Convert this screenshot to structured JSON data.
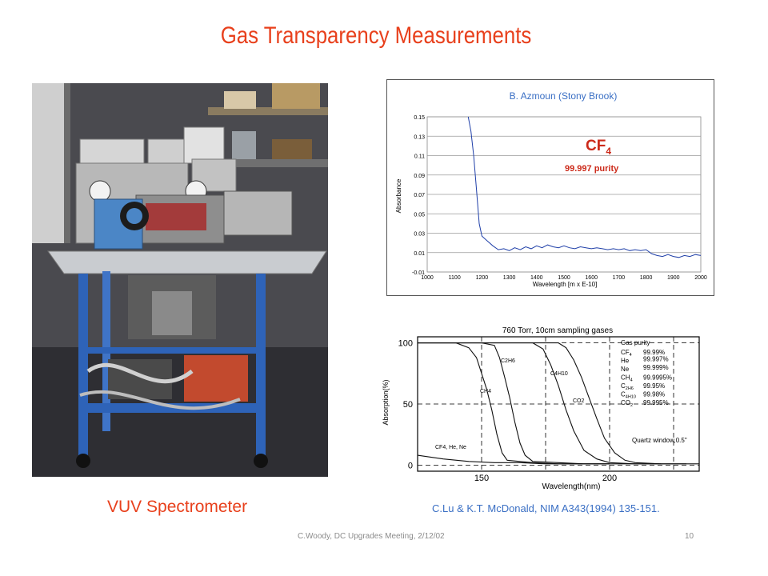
{
  "slide": {
    "title": "Gas Transparency Measurements",
    "photo_caption": "VUV Spectrometer",
    "footer": "C.Woody, DC Upgrades Meeting, 2/12/02",
    "page_number": "10"
  },
  "chart_data": [
    {
      "type": "line",
      "title": "B.  Azmoun (Stony Brook)",
      "xlabel": "Wavelength [m x E-10]",
      "ylabel": "Absorbance",
      "annotation_main": "CF",
      "annotation_sub": "4",
      "annotation_purity": "99.997 purity",
      "xlim": [
        1000,
        2000
      ],
      "ylim": [
        -0.01,
        0.15
      ],
      "x_ticks": [
        "1000",
        "1100",
        "1200",
        "1300",
        "1400",
        "1500",
        "1600",
        "1700",
        "1800",
        "1900",
        "2000"
      ],
      "y_ticks": [
        "0.15",
        "0.13",
        "0.11",
        "0.09",
        "0.07",
        "0.05",
        "0.03",
        "0.01",
        "-0.01"
      ],
      "grid": true,
      "series": [
        {
          "color": "#1f3fa8",
          "x": [
            1150,
            1160,
            1170,
            1180,
            1190,
            1200,
            1220,
            1240,
            1260,
            1280,
            1300,
            1320,
            1340,
            1360,
            1380,
            1400,
            1420,
            1440,
            1460,
            1480,
            1500,
            1520,
            1540,
            1560,
            1580,
            1600,
            1620,
            1640,
            1660,
            1680,
            1700,
            1720,
            1740,
            1760,
            1780,
            1800,
            1820,
            1840,
            1860,
            1880,
            1900,
            1920,
            1940,
            1960,
            1980,
            2000
          ],
          "y": [
            0.15,
            0.135,
            0.11,
            0.075,
            0.04,
            0.027,
            0.022,
            0.017,
            0.013,
            0.014,
            0.012,
            0.015,
            0.013,
            0.016,
            0.014,
            0.017,
            0.015,
            0.018,
            0.016,
            0.015,
            0.017,
            0.015,
            0.014,
            0.016,
            0.015,
            0.014,
            0.015,
            0.014,
            0.013,
            0.014,
            0.013,
            0.014,
            0.012,
            0.013,
            0.012,
            0.013,
            0.009,
            0.007,
            0.006,
            0.008,
            0.006,
            0.005,
            0.007,
            0.006,
            0.008,
            0.007
          ]
        }
      ]
    },
    {
      "type": "line",
      "title": "760 Torr, 10cm sampling gases",
      "xlabel": "Wavelength(nm)",
      "ylabel": "Absorption(%)",
      "xlim": [
        125,
        235
      ],
      "ylim": [
        -5,
        105
      ],
      "x_ticks": [
        "150",
        "200"
      ],
      "y_ticks": [
        "100",
        "50",
        "0"
      ],
      "grid": true,
      "legend_title": "Gas purity",
      "legend": [
        {
          "gas": "CF",
          "sub": "4",
          "purity": "99.99%"
        },
        {
          "gas": "He",
          "sub": "",
          "purity": "99.997%"
        },
        {
          "gas": "Ne",
          "sub": "",
          "purity": "99.999%"
        },
        {
          "gas": "CH",
          "sub": "4",
          "purity": "99.9995%"
        },
        {
          "gas": "C",
          "sub": "2H6",
          "purity": "99.95%"
        },
        {
          "gas": "C",
          "sub": "4H10",
          "purity": "99.98%"
        },
        {
          "gas": "CO",
          "sub": "2",
          "purity": "99.995%"
        }
      ],
      "curve_labels": [
        "C2H6",
        "CH4",
        "C4H10",
        "CO2",
        "CF4, He, Ne"
      ],
      "annotation": "Quartz window,0.5\"",
      "series": [
        {
          "name": "CH4",
          "x": [
            125,
            140,
            145,
            148,
            150,
            152,
            154,
            156,
            158,
            160,
            170,
            180,
            190,
            200
          ],
          "y": [
            100,
            100,
            96,
            88,
            75,
            62,
            45,
            25,
            10,
            4,
            2,
            1,
            1,
            1
          ]
        },
        {
          "name": "C2H6",
          "x": [
            125,
            150,
            155,
            157,
            159,
            161,
            163,
            165,
            167,
            170,
            180,
            190,
            200
          ],
          "y": [
            100,
            100,
            98,
            88,
            72,
            55,
            35,
            18,
            8,
            3,
            2,
            1,
            1
          ]
        },
        {
          "name": "C4H10",
          "x": [
            125,
            170,
            174,
            177,
            180,
            183,
            186,
            190,
            195,
            200,
            210,
            220
          ],
          "y": [
            100,
            100,
            95,
            82,
            65,
            45,
            28,
            12,
            5,
            2,
            1,
            1
          ]
        },
        {
          "name": "CO2",
          "x": [
            125,
            180,
            183,
            186,
            189,
            192,
            195,
            198,
            202,
            206,
            210,
            220,
            230
          ],
          "y": [
            100,
            100,
            96,
            86,
            72,
            55,
            38,
            22,
            10,
            4,
            2,
            1,
            1
          ]
        },
        {
          "name": "CF4, He, Ne",
          "x": [
            125,
            135,
            145,
            155,
            165,
            175,
            185,
            195,
            205,
            215,
            225,
            235
          ],
          "y": [
            8,
            5,
            3,
            2,
            2,
            1,
            1,
            1,
            1,
            1,
            1,
            1
          ]
        }
      ]
    }
  ],
  "chart2_reference": "C.Lu & K.T. McDonald, NIM A343(1994) 135-151."
}
